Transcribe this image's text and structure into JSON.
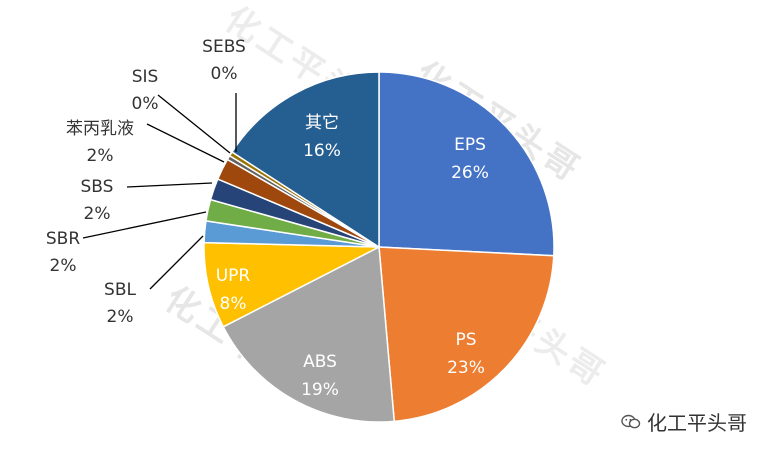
{
  "chart_data": {
    "type": "pie",
    "title": "",
    "slices": [
      {
        "label": "EPS",
        "pct_text": "26%",
        "value": 26,
        "color": "#4472c4"
      },
      {
        "label": "PS",
        "pct_text": "23%",
        "value": 23,
        "color": "#ed7d31"
      },
      {
        "label": "ABS",
        "pct_text": "19%",
        "value": 19,
        "color": "#a5a5a5"
      },
      {
        "label": "UPR",
        "pct_text": "8%",
        "value": 8,
        "color": "#ffc000"
      },
      {
        "label": "SBL",
        "pct_text": "2%",
        "value": 2,
        "color": "#5b9bd5"
      },
      {
        "label": "SBR",
        "pct_text": "2%",
        "value": 2,
        "color": "#70ad47"
      },
      {
        "label": "SBS",
        "pct_text": "2%",
        "value": 2,
        "color": "#264478"
      },
      {
        "label": "苯丙乳液",
        "pct_text": "2%",
        "value": 2,
        "color": "#9e480e"
      },
      {
        "label": "SIS",
        "pct_text": "0%",
        "value": 0.4,
        "color": "#636363"
      },
      {
        "label": "SEBS",
        "pct_text": "0%",
        "value": 0.4,
        "color": "#997300"
      },
      {
        "label": "其它",
        "pct_text": "16%",
        "value": 16,
        "color": "#255e91"
      }
    ]
  },
  "watermark": {
    "text": "化工平头哥"
  },
  "credit": {
    "text": "化工平头哥"
  }
}
